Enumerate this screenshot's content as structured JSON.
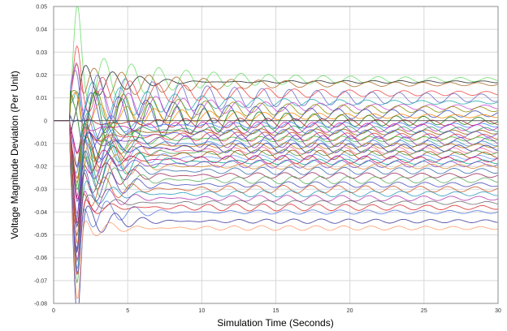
{
  "chart_data": {
    "type": "line",
    "title": "",
    "xlabel": "Simulation Time (Seconds)",
    "ylabel": "Voltage Magnitude Deviation (Per Unit)",
    "xlim": [
      0,
      30
    ],
    "ylim": [
      -0.08,
      0.05
    ],
    "xticks": [
      0,
      5,
      10,
      15,
      20,
      25,
      30
    ],
    "yticks": [
      0.05,
      0.04,
      0.03,
      0.02,
      0.01,
      0,
      -0.01,
      -0.02,
      -0.03,
      -0.04,
      -0.05,
      -0.06,
      -0.07,
      -0.08
    ],
    "xtick_labels": [
      "0",
      "5",
      "10",
      "15",
      "20",
      "25",
      "30"
    ],
    "ytick_labels": [
      "0.05",
      "0.04",
      "0.03",
      "0.02",
      "0.01",
      "0",
      "-0.01",
      "-0.02",
      "-0.03",
      "-0.04",
      "-0.05",
      "-0.06",
      "-0.07",
      "-0.08"
    ],
    "grid": true,
    "legend": "none",
    "disturbance_time": 1.1,
    "oscillation_period": 1.85,
    "series": [
      {
        "final": 0.018,
        "peak": 0.04,
        "osc": 0.004,
        "color": "#66dd66"
      },
      {
        "final": 0.017,
        "peak": -0.01,
        "osc": 0.002,
        "color": "#222222"
      },
      {
        "final": 0.016,
        "peak": 0.03,
        "osc": 0.003,
        "color": "#aa6622"
      },
      {
        "final": 0.012,
        "peak": 0.025,
        "osc": 0.004,
        "color": "#ee4444"
      },
      {
        "final": 0.01,
        "peak": 0.02,
        "osc": 0.008,
        "color": "#6666cc"
      },
      {
        "final": 0.008,
        "peak": 0.028,
        "osc": 0.003,
        "color": "#22aaaa"
      },
      {
        "final": 0.006,
        "peak": 0.022,
        "osc": 0.004,
        "color": "#cc44cc"
      },
      {
        "final": 0.005,
        "peak": 0.018,
        "osc": 0.005,
        "color": "#888800"
      },
      {
        "final": 0.003,
        "peak": 0.015,
        "osc": 0.006,
        "color": "#3344aa"
      },
      {
        "final": 0.002,
        "peak": 0.012,
        "osc": 0.003,
        "color": "#ff8800"
      },
      {
        "final": 0.0,
        "peak": 0.02,
        "osc": 0.007,
        "color": "#117711"
      },
      {
        "final": -0.001,
        "peak": -0.02,
        "osc": 0.005,
        "color": "#aa2222"
      },
      {
        "final": -0.002,
        "peak": -0.035,
        "osc": 0.004,
        "color": "#4477ff"
      },
      {
        "final": -0.003,
        "peak": -0.025,
        "osc": 0.006,
        "color": "#cc22aa"
      },
      {
        "final": -0.004,
        "peak": -0.04,
        "osc": 0.005,
        "color": "#229966"
      },
      {
        "final": -0.005,
        "peak": -0.03,
        "osc": 0.004,
        "color": "#995500"
      },
      {
        "final": -0.006,
        "peak": -0.045,
        "osc": 0.006,
        "color": "#5555dd"
      },
      {
        "final": -0.007,
        "peak": -0.03,
        "osc": 0.005,
        "color": "#dd3333"
      },
      {
        "final": -0.008,
        "peak": -0.05,
        "osc": 0.004,
        "color": "#33bb33"
      },
      {
        "final": -0.009,
        "peak": -0.04,
        "osc": 0.007,
        "color": "#8833aa"
      },
      {
        "final": -0.01,
        "peak": -0.055,
        "osc": 0.005,
        "color": "#3388cc"
      },
      {
        "final": -0.011,
        "peak": -0.045,
        "osc": 0.004,
        "color": "#bb7700"
      },
      {
        "final": -0.012,
        "peak": -0.05,
        "osc": 0.006,
        "color": "#2222aa"
      },
      {
        "final": -0.013,
        "peak": -0.06,
        "osc": 0.005,
        "color": "#ee6699"
      },
      {
        "final": -0.014,
        "peak": -0.05,
        "osc": 0.004,
        "color": "#449944"
      },
      {
        "final": -0.015,
        "peak": -0.055,
        "osc": 0.006,
        "color": "#aa4400"
      },
      {
        "final": -0.016,
        "peak": -0.06,
        "osc": 0.004,
        "color": "#6699ff"
      },
      {
        "final": -0.017,
        "peak": -0.05,
        "osc": 0.005,
        "color": "#cc0066"
      },
      {
        "final": -0.018,
        "peak": -0.065,
        "osc": 0.004,
        "color": "#00aa88"
      },
      {
        "final": -0.019,
        "peak": -0.055,
        "osc": 0.005,
        "color": "#7744cc"
      },
      {
        "final": -0.02,
        "peak": -0.06,
        "osc": 0.004,
        "color": "#dd8833"
      },
      {
        "final": -0.022,
        "peak": -0.065,
        "osc": 0.005,
        "color": "#3366aa"
      },
      {
        "final": -0.024,
        "peak": -0.06,
        "osc": 0.004,
        "color": "#992255"
      },
      {
        "final": -0.026,
        "peak": -0.07,
        "osc": 0.005,
        "color": "#55aa55"
      },
      {
        "final": -0.028,
        "peak": -0.065,
        "osc": 0.004,
        "color": "#4444bb"
      },
      {
        "final": -0.03,
        "peak": -0.068,
        "osc": 0.005,
        "color": "#cc5522"
      },
      {
        "final": -0.032,
        "peak": -0.06,
        "osc": 0.004,
        "color": "#2299bb"
      },
      {
        "final": -0.034,
        "peak": -0.065,
        "osc": 0.004,
        "color": "#aa33aa"
      },
      {
        "final": -0.036,
        "peak": -0.055,
        "osc": 0.003,
        "color": "#666666"
      },
      {
        "final": -0.038,
        "peak": -0.06,
        "osc": 0.004,
        "color": "#dd2222"
      },
      {
        "final": -0.04,
        "peak": -0.07,
        "osc": 0.003,
        "color": "#5577dd"
      },
      {
        "final": -0.044,
        "peak": -0.072,
        "osc": 0.003,
        "color": "#333399"
      },
      {
        "final": -0.047,
        "peak": -0.068,
        "osc": 0.003,
        "color": "#ff9966"
      }
    ]
  }
}
